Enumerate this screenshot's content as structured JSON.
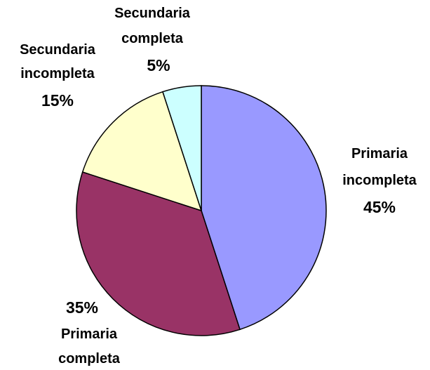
{
  "chart_data": {
    "type": "pie",
    "categories": [
      "Primaria incompleta",
      "Primaria completa",
      "Secundaria incompleta",
      "Secundaria completa"
    ],
    "values": [
      45,
      35,
      15,
      5
    ],
    "value_labels": [
      "45%",
      "35%",
      "15%",
      "5%"
    ],
    "colors": [
      "#9999ff",
      "#993366",
      "#ffffcc",
      "#ccffff"
    ]
  }
}
